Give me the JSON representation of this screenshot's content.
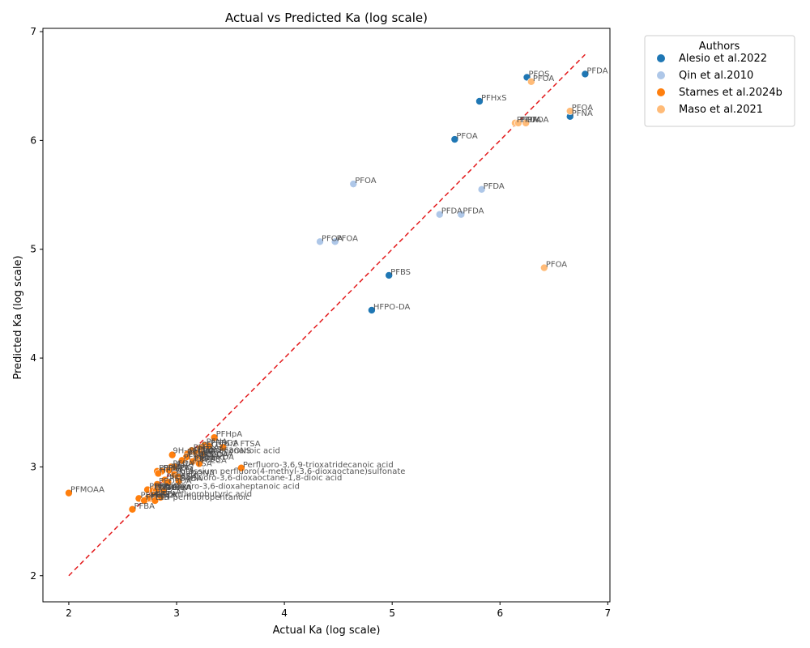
{
  "chart_data": {
    "type": "scatter",
    "title": "Actual vs Predicted Ka (log scale)",
    "xlabel": "Actual Ka (log scale)",
    "ylabel": "Predicted Ka (log scale)",
    "xlim": [
      1.76,
      7.02
    ],
    "ylim": [
      1.76,
      7.03
    ],
    "xticks": [
      "2",
      "3",
      "4",
      "5",
      "6",
      "7"
    ],
    "yticks": [
      "2",
      "3",
      "4",
      "5",
      "6",
      "7"
    ],
    "grid": false,
    "reference_line": {
      "style": "dashed",
      "color": "#e31a1c",
      "from": [
        2.0,
        2.0
      ],
      "to": [
        6.79,
        6.79
      ]
    },
    "legend": {
      "title": "Authors",
      "placement": "outside-top-right",
      "entries": [
        {
          "name": "Alesio et al.2022",
          "color": "#1f77b4"
        },
        {
          "name": "Qin et al.2010",
          "color": "#aec7e8"
        },
        {
          "name": "Starnes et al.2024b",
          "color": "#ff7f0e"
        },
        {
          "name": "Maso et al.2021",
          "color": "#ffbb78"
        }
      ]
    },
    "series": [
      {
        "name": "Alesio et al.2022",
        "color": "#1f77b4",
        "points": [
          {
            "x": 6.79,
            "y": 6.61,
            "label": "PFDA"
          },
          {
            "x": 6.25,
            "y": 6.58,
            "label": "PFOS"
          },
          {
            "x": 5.81,
            "y": 6.36,
            "label": "PFHxS"
          },
          {
            "x": 6.65,
            "y": 6.22,
            "label": "PFNA"
          },
          {
            "x": 5.58,
            "y": 6.01,
            "label": "PFOA"
          },
          {
            "x": 4.97,
            "y": 4.76,
            "label": "PFBS"
          },
          {
            "x": 4.81,
            "y": 4.44,
            "label": "HFPO-DA"
          }
        ]
      },
      {
        "name": "Qin et al.2010",
        "color": "#aec7e8",
        "points": [
          {
            "x": 4.64,
            "y": 5.6,
            "label": "PFOA"
          },
          {
            "x": 5.83,
            "y": 5.55,
            "label": "PFDA"
          },
          {
            "x": 5.44,
            "y": 5.32,
            "label": "PFDA"
          },
          {
            "x": 5.64,
            "y": 5.32,
            "label": "PFDA"
          },
          {
            "x": 4.33,
            "y": 5.07,
            "label": "PFOA"
          },
          {
            "x": 4.47,
            "y": 5.07,
            "label": "PFOA"
          }
        ]
      },
      {
        "name": "Maso et al.2021",
        "color": "#ffbb78",
        "points": [
          {
            "x": 6.29,
            "y": 6.54,
            "label": "PFOA"
          },
          {
            "x": 6.65,
            "y": 6.27,
            "label": "PFOA"
          },
          {
            "x": 6.14,
            "y": 6.16,
            "label": "PFOA"
          },
          {
            "x": 6.17,
            "y": 6.16,
            "label": "PFOA"
          },
          {
            "x": 6.24,
            "y": 6.16,
            "label": "PFOA"
          },
          {
            "x": 6.41,
            "y": 4.83,
            "label": "PFOA"
          }
        ]
      },
      {
        "name": "Starnes et al.2024b",
        "color": "#ff7f0e",
        "points": [
          {
            "x": 3.35,
            "y": 3.27,
            "label": "PFHpA"
          },
          {
            "x": 3.26,
            "y": 3.2,
            "label": "PFNA"
          },
          {
            "x": 3.3,
            "y": 3.19,
            "label": "PFTrDA"
          },
          {
            "x": 3.43,
            "y": 3.18,
            "label": "6:2 FTSA"
          },
          {
            "x": 3.22,
            "y": 3.17,
            "label": "PFOS"
          },
          {
            "x": 3.14,
            "y": 3.15,
            "label": "PFHxA"
          },
          {
            "x": 3.18,
            "y": 3.13,
            "label": "PFPeS"
          },
          {
            "x": 3.1,
            "y": 3.12,
            "label": "PFDoA"
          },
          {
            "x": 3.23,
            "y": 3.12,
            "label": "9Cl-PF3ONS"
          },
          {
            "x": 2.96,
            "y": 3.11,
            "label": "9H-perfluorononanoic acid"
          },
          {
            "x": 3.09,
            "y": 3.09,
            "label": "PFHxS"
          },
          {
            "x": 3.21,
            "y": 3.09,
            "label": "PFUnDA"
          },
          {
            "x": 3.19,
            "y": 3.08,
            "label": "PFTeDA"
          },
          {
            "x": 3.05,
            "y": 3.06,
            "label": "PFBS"
          },
          {
            "x": 3.22,
            "y": 3.06,
            "label": "PFHxDA"
          },
          {
            "x": 3.15,
            "y": 3.05,
            "label": "PFDA"
          },
          {
            "x": 3.2,
            "y": 3.04,
            "label": "PFDS"
          },
          {
            "x": 3.21,
            "y": 3.03,
            "label": "PFECA"
          },
          {
            "x": 2.95,
            "y": 3.0,
            "label": "PFBA"
          },
          {
            "x": 2.98,
            "y": 3.0,
            "label": "4:2 FTSA"
          },
          {
            "x": 2.93,
            "y": 2.97,
            "label": "PFPrS"
          },
          {
            "x": 2.82,
            "y": 2.96,
            "label": "PFPeA"
          },
          {
            "x": 2.86,
            "y": 2.96,
            "label": "PFMPA"
          },
          {
            "x": 2.83,
            "y": 2.94,
            "label": "HFPO-TA"
          },
          {
            "x": 3.6,
            "y": 2.99,
            "label": "Perfluoro-3,6,9-trioxatridecanoic acid"
          },
          {
            "x": 2.98,
            "y": 2.93,
            "label": "Potassium perfluoro(4-methyl-3,6-dioxaoctane)sulfonate"
          },
          {
            "x": 3.01,
            "y": 2.91,
            "label": "NaDONA"
          },
          {
            "x": 2.89,
            "y": 2.88,
            "label": "PFEESA"
          },
          {
            "x": 3.02,
            "y": 2.87,
            "label": "Perfluoro-3,6-dioxaoctane-1,8-dioic acid"
          },
          {
            "x": 2.92,
            "y": 2.86,
            "label": "PFO4DA"
          },
          {
            "x": 2.82,
            "y": 2.84,
            "label": "PFO3OA"
          },
          {
            "x": 2.73,
            "y": 2.79,
            "label": "PFBA"
          },
          {
            "x": 2.78,
            "y": 2.79,
            "label": "PFPrA"
          },
          {
            "x": 2.85,
            "y": 2.79,
            "label": "Perfluoro-3,6-dioxaheptanoic acid"
          },
          {
            "x": 2.78,
            "y": 2.78,
            "label": "PFMOPrA"
          },
          {
            "x": 2.81,
            "y": 2.78,
            "label": "PFMOBA"
          },
          {
            "x": 2.88,
            "y": 2.78,
            "label": "GenX"
          },
          {
            "x": 2.0,
            "y": 2.76,
            "label": "PFMOAA"
          },
          {
            "x": 2.79,
            "y": 2.74,
            "label": "PFECA"
          },
          {
            "x": 2.85,
            "y": 2.72,
            "label": "TFA"
          },
          {
            "x": 2.65,
            "y": 2.71,
            "label": "PFMeS"
          },
          {
            "x": 2.75,
            "y": 2.71,
            "label": "PFECA"
          },
          {
            "x": 2.73,
            "y": 2.71,
            "label": "4H-perfluorobutyric acid"
          },
          {
            "x": 2.7,
            "y": 2.69,
            "label": "PFEtS"
          },
          {
            "x": 2.8,
            "y": 2.69,
            "label": "5H-perfluoropentanoic"
          },
          {
            "x": 2.59,
            "y": 2.61,
            "label": "PFBA"
          }
        ]
      }
    ],
    "annotations": [
      {
        "at": [
          2.95,
          3.12
        ],
        "text": "9H-perfluorononanoic acid"
      },
      {
        "at": [
          3.6,
          2.99
        ],
        "text": "Perfluoro-3,6,9-trioxatridecanoic acid"
      },
      {
        "at": [
          2.98,
          2.93
        ],
        "text": "Potassium perfluoro(4-methyl-3,6-dioxaoctane)sulfonate"
      },
      {
        "at": [
          3.02,
          2.87
        ],
        "text": "Perfluoro-3,6-dioxaoctane-1,8-dioic acid"
      },
      {
        "at": [
          2.86,
          2.79
        ],
        "text": "Perfluoro-3,6-dioxaheptanoic acid"
      },
      {
        "at": [
          2.77,
          2.72
        ],
        "text": "4H-perfluorobutyric acid"
      },
      {
        "at": [
          2.82,
          2.69
        ],
        "text": "5H-perfluoropentanoic"
      }
    ]
  }
}
